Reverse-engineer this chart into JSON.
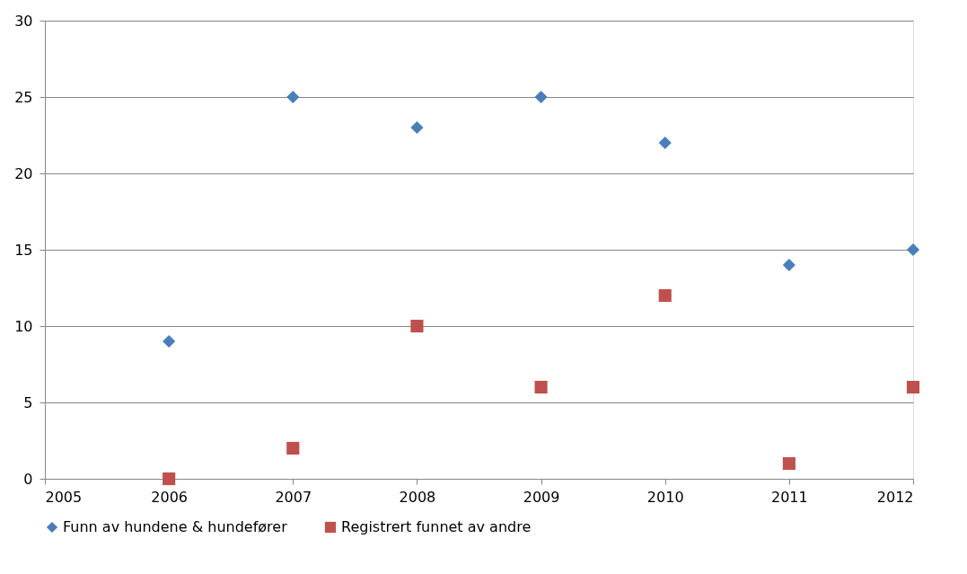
{
  "chart_data": {
    "type": "scatter",
    "x": [
      2006,
      2007,
      2008,
      2009,
      2010,
      2011,
      2012
    ],
    "series": [
      {
        "name": "Funn av hundene & hundefører",
        "color": "#4a7ebb",
        "marker": "diamond",
        "values": [
          9,
          25,
          23,
          25,
          22,
          14,
          15
        ]
      },
      {
        "name": "Registrert funnet av andre",
        "color": "#c0504d",
        "marker": "square",
        "values": [
          0,
          2,
          10,
          6,
          12,
          1,
          6
        ]
      }
    ],
    "xlim": [
      2005,
      2012
    ],
    "xticks": [
      2005,
      2006,
      2007,
      2008,
      2009,
      2010,
      2011,
      2012
    ],
    "ylim": [
      0,
      30
    ],
    "yticks": [
      0,
      5,
      10,
      15,
      20,
      25,
      30
    ],
    "grid": "y",
    "legend": "bottom"
  }
}
